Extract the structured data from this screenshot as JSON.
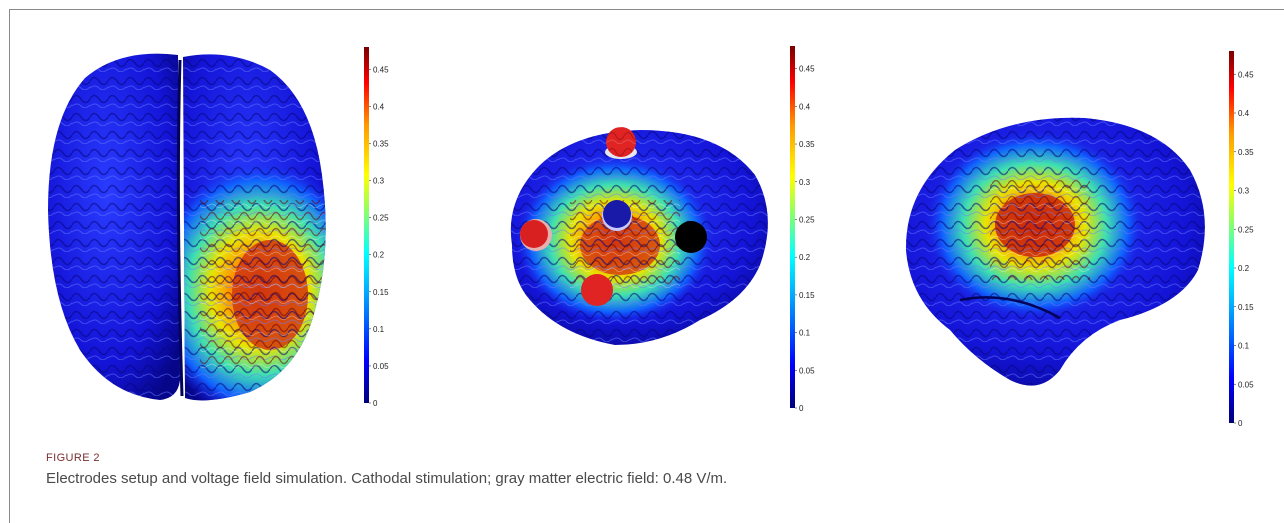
{
  "figure": {
    "label": "FIGURE 2",
    "caption": "Electrodes setup and voltage field simulation. Cathodal stimulation; gray matter electric field: 0.48 V/m."
  },
  "colorbar": {
    "ticks": [
      "0.45",
      "0.4",
      "0.35",
      "0.3",
      "0.25",
      "0.2",
      "0.15",
      "0.1",
      "0.05",
      "0"
    ],
    "tick_values": [
      0.45,
      0.4,
      0.35,
      0.3,
      0.25,
      0.2,
      0.15,
      0.1,
      0.05,
      0
    ],
    "max_value": 0.48,
    "colors": [
      "#00007a",
      "#0000ff",
      "#00a0ff",
      "#00ffff",
      "#9aff5a",
      "#ffff00",
      "#ff9a00",
      "#ff0000",
      "#7a0000"
    ]
  },
  "panels": [
    {
      "view": "top"
    },
    {
      "view": "lateral-with-electrodes"
    },
    {
      "view": "lateral"
    }
  ],
  "electrodes": [
    {
      "color": "#e02424",
      "name": "anode"
    },
    {
      "color": "#e02424",
      "name": "anode"
    },
    {
      "color": "#1a1aa8",
      "name": "cathode"
    },
    {
      "color": "#e02424",
      "name": "anode"
    },
    {
      "color": "#000000",
      "name": "reference"
    }
  ]
}
